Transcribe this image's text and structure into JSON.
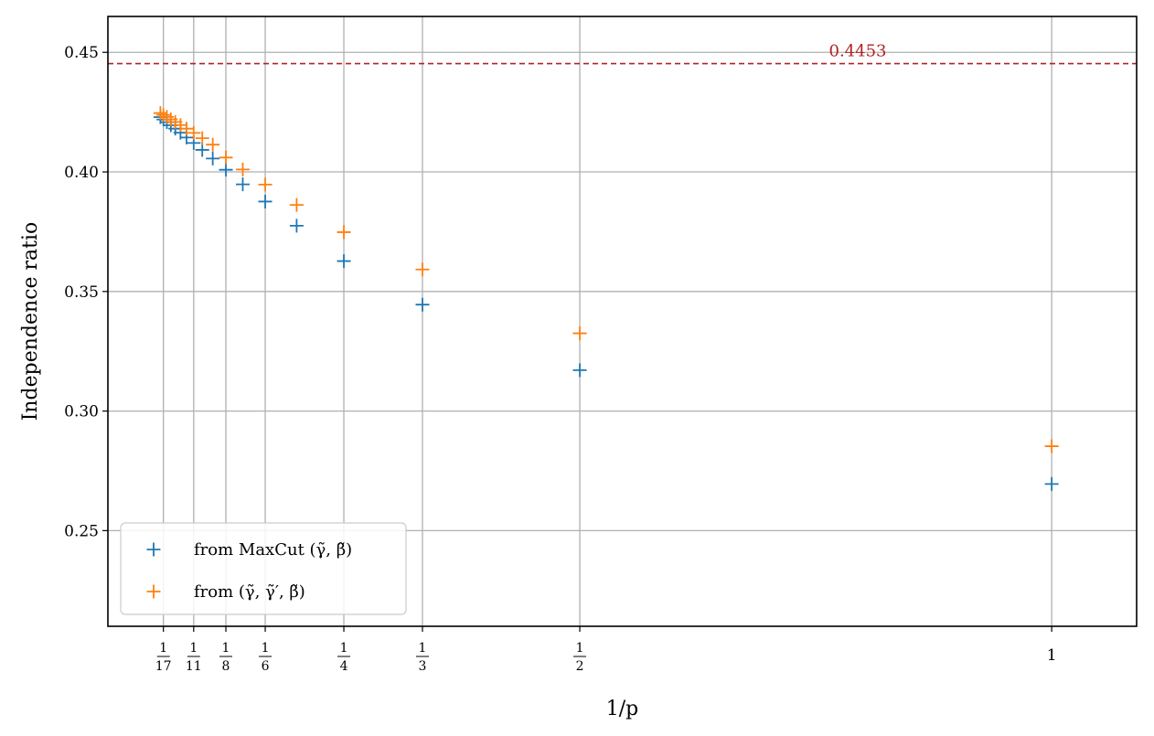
{
  "chart_data": {
    "type": "scatter",
    "xlabel": "1/p",
    "ylabel": "Independence ratio",
    "xlim": [
      0,
      1.09
    ],
    "ylim": [
      0.21,
      0.465
    ],
    "grid": true,
    "x_ticks": [
      {
        "value": 0.0588,
        "num": "1",
        "den": "17"
      },
      {
        "value": 0.0909,
        "num": "1",
        "den": "11"
      },
      {
        "value": 0.125,
        "num": "1",
        "den": "8"
      },
      {
        "value": 0.1667,
        "num": "1",
        "den": "6"
      },
      {
        "value": 0.25,
        "num": "1",
        "den": "4"
      },
      {
        "value": 0.3333,
        "num": "1",
        "den": "3"
      },
      {
        "value": 0.5,
        "num": "1",
        "den": "2"
      },
      {
        "value": 1.0,
        "label": "1"
      }
    ],
    "y_ticks": [
      {
        "value": 0.25,
        "label": "0.25"
      },
      {
        "value": 0.3,
        "label": "0.30"
      },
      {
        "value": 0.35,
        "label": "0.35"
      },
      {
        "value": 0.4,
        "label": "0.40"
      },
      {
        "value": 0.45,
        "label": "0.45"
      }
    ],
    "reference_line": {
      "y": 0.4453,
      "label": "0.4453",
      "color": "#b22222",
      "style": "dashed"
    },
    "legend_position": "lower-left",
    "series": [
      {
        "name": "from MaxCut (γ̃, β̃)",
        "color": "#1f77b4",
        "marker": "plus",
        "x": [
          0.0556,
          0.0588,
          0.0625,
          0.0667,
          0.0714,
          0.0769,
          0.0833,
          0.0909,
          0.1,
          0.1111,
          0.125,
          0.1429,
          0.1667,
          0.2,
          0.25,
          0.3333,
          0.5,
          1.0
        ],
        "y": [
          0.4229,
          0.4219,
          0.4208,
          0.4195,
          0.4181,
          0.4164,
          0.4144,
          0.4121,
          0.4092,
          0.4056,
          0.4009,
          0.3948,
          0.3876,
          0.3775,
          0.3627,
          0.3445,
          0.3171,
          0.2695
        ]
      },
      {
        "name": "from (γ̃, γ̃′, β̃)",
        "color": "#ff7f0e",
        "marker": "plus",
        "x": [
          0.0556,
          0.0588,
          0.0625,
          0.0667,
          0.0714,
          0.0769,
          0.0833,
          0.0909,
          0.1,
          0.1111,
          0.125,
          0.1429,
          0.1667,
          0.2,
          0.25,
          0.3333,
          0.5,
          1.0
        ],
        "y": [
          0.4246,
          0.4238,
          0.423,
          0.422,
          0.4209,
          0.4196,
          0.4181,
          0.4163,
          0.4141,
          0.4114,
          0.406,
          0.401,
          0.3947,
          0.3862,
          0.3748,
          0.3592,
          0.3325,
          0.2853
        ]
      }
    ]
  }
}
